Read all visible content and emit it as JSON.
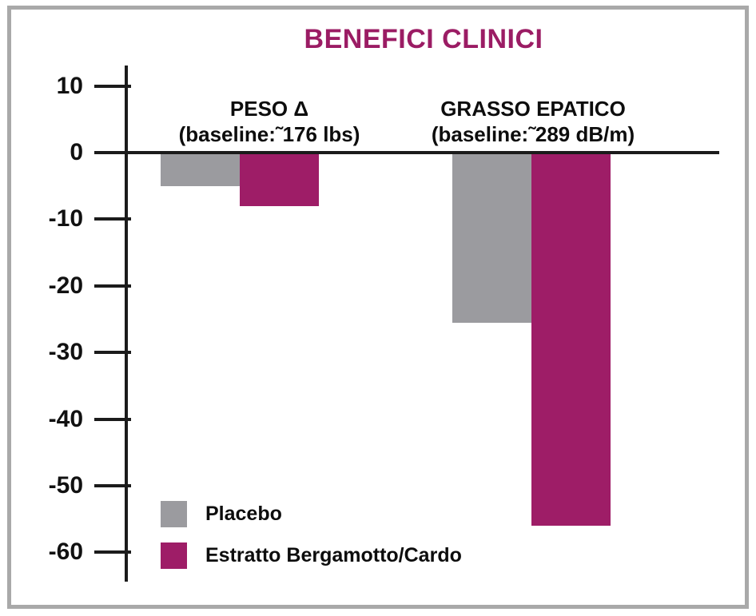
{
  "window": {
    "background": "#ffffff",
    "frame_border_color": "#a9a9a9"
  },
  "chart_data": {
    "type": "bar",
    "title": "BENEFICI CLINICI",
    "title_color": "#9B1C64",
    "xlabel": "",
    "ylabel": "",
    "ylim": [
      -65,
      13
    ],
    "yticks": [
      10,
      0,
      -10,
      -20,
      -30,
      -40,
      -50,
      -60
    ],
    "grid": false,
    "legend_position": "bottom-left",
    "axis_color": "#1b1b1b",
    "groups": [
      {
        "name": "PESO Δ",
        "baseline_note": "(baseline:˜176 lbs)"
      },
      {
        "name": "GRASSO EPATICO",
        "baseline_note": "(baseline:˜289 dB/m)"
      }
    ],
    "series": [
      {
        "name": "Placebo",
        "color": "#9B9B9F",
        "values": [
          -5,
          -25.5
        ]
      },
      {
        "name": "Estratto Bergamotto/Cardo",
        "color": "#9E1D67",
        "values": [
          -8,
          -56
        ]
      }
    ]
  }
}
